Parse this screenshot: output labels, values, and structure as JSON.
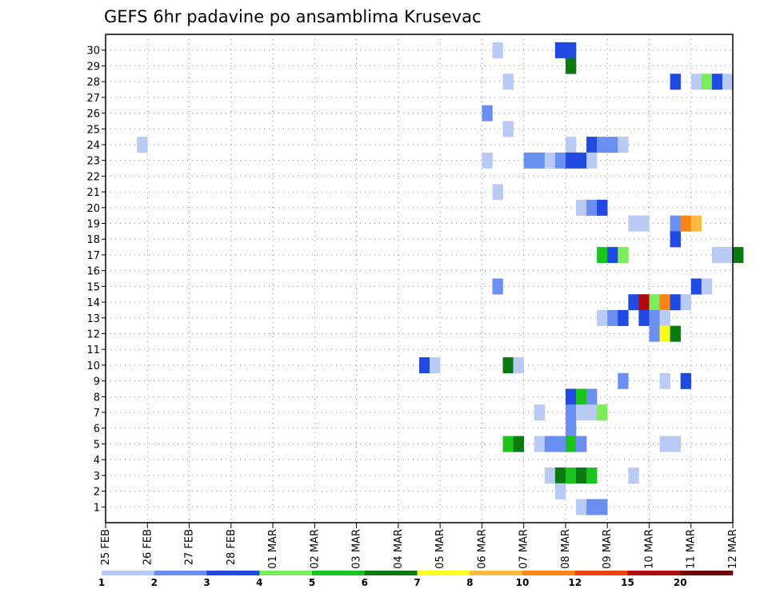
{
  "chart_data": {
    "type": "heatmap",
    "title": "GEFS 6hr padavine po ansamblima Krusevac",
    "xlabel": "",
    "ylabel": "",
    "x_tick_labels": [
      "25 FEB",
      "26 FEB",
      "27 FEB",
      "28 FEB",
      "01 MAR",
      "02 MAR",
      "03 MAR",
      "04 MAR",
      "05 MAR",
      "06 MAR",
      "07 MAR",
      "08 MAR",
      "09 MAR",
      "10 MAR",
      "11 MAR",
      "12 MAR"
    ],
    "x_range_days": [
      0,
      15
    ],
    "y_tick_labels": [
      "1",
      "2",
      "3",
      "4",
      "5",
      "6",
      "7",
      "8",
      "9",
      "10",
      "11",
      "12",
      "13",
      "14",
      "15",
      "16",
      "17",
      "18",
      "19",
      "20",
      "21",
      "22",
      "23",
      "24",
      "25",
      "26",
      "27",
      "28",
      "29",
      "30"
    ],
    "y_range": [
      0,
      30
    ],
    "grid": true,
    "legend": {
      "placement": "bottom",
      "colors": [
        "#b9cbf5",
        "#6b8ff0",
        "#1f49e0",
        "#7ced5a",
        "#19c31d",
        "#0b7a12",
        "#fbfd1c",
        "#fcbb3e",
        "#fb8415",
        "#f0400d",
        "#b2090e",
        "#6e060a"
      ],
      "labels": [
        "1",
        "2",
        "3",
        "4",
        "5",
        "6",
        "7",
        "8",
        "10",
        "12",
        "15",
        "20"
      ]
    },
    "cells": [
      {
        "member": 30,
        "step": 37,
        "bin": 1
      },
      {
        "member": 30,
        "step": 43,
        "bin": 3
      },
      {
        "member": 30,
        "step": 44,
        "bin": 3
      },
      {
        "member": 29,
        "step": 44,
        "bin": 6
      },
      {
        "member": 28,
        "step": 38,
        "bin": 1
      },
      {
        "member": 28,
        "step": 54,
        "bin": 3
      },
      {
        "member": 28,
        "step": 56,
        "bin": 1
      },
      {
        "member": 28,
        "step": 57,
        "bin": 4
      },
      {
        "member": 28,
        "step": 58,
        "bin": 3
      },
      {
        "member": 28,
        "step": 59,
        "bin": 1
      },
      {
        "member": 26,
        "step": 36,
        "bin": 2
      },
      {
        "member": 25,
        "step": 38,
        "bin": 1
      },
      {
        "member": 24,
        "step": 3,
        "bin": 1
      },
      {
        "member": 24,
        "step": 44,
        "bin": 1
      },
      {
        "member": 24,
        "step": 46,
        "bin": 3
      },
      {
        "member": 24,
        "step": 47,
        "bin": 2
      },
      {
        "member": 24,
        "step": 48,
        "bin": 2
      },
      {
        "member": 24,
        "step": 49,
        "bin": 1
      },
      {
        "member": 23,
        "step": 36,
        "bin": 1
      },
      {
        "member": 23,
        "step": 40,
        "bin": 2
      },
      {
        "member": 23,
        "step": 41,
        "bin": 2
      },
      {
        "member": 23,
        "step": 42,
        "bin": 1
      },
      {
        "member": 23,
        "step": 43,
        "bin": 2
      },
      {
        "member": 23,
        "step": 44,
        "bin": 3
      },
      {
        "member": 23,
        "step": 45,
        "bin": 3
      },
      {
        "member": 23,
        "step": 46,
        "bin": 1
      },
      {
        "member": 21,
        "step": 37,
        "bin": 1
      },
      {
        "member": 20,
        "step": 45,
        "bin": 1
      },
      {
        "member": 20,
        "step": 46,
        "bin": 2
      },
      {
        "member": 20,
        "step": 47,
        "bin": 3
      },
      {
        "member": 19,
        "step": 50,
        "bin": 1
      },
      {
        "member": 19,
        "step": 51,
        "bin": 1
      },
      {
        "member": 19,
        "step": 54,
        "bin": 2
      },
      {
        "member": 19,
        "step": 55,
        "bin": 9
      },
      {
        "member": 19,
        "step": 56,
        "bin": 8
      },
      {
        "member": 18,
        "step": 54,
        "bin": 3
      },
      {
        "member": 17,
        "step": 47,
        "bin": 5
      },
      {
        "member": 17,
        "step": 48,
        "bin": 3
      },
      {
        "member": 17,
        "step": 49,
        "bin": 4
      },
      {
        "member": 17,
        "step": 58,
        "bin": 1
      },
      {
        "member": 17,
        "step": 59,
        "bin": 1
      },
      {
        "member": 17,
        "step": 60,
        "bin": 6
      },
      {
        "member": 15,
        "step": 37,
        "bin": 2
      },
      {
        "member": 15,
        "step": 56,
        "bin": 3
      },
      {
        "member": 15,
        "step": 57,
        "bin": 1
      },
      {
        "member": 14,
        "step": 50,
        "bin": 3
      },
      {
        "member": 14,
        "step": 51,
        "bin": 11
      },
      {
        "member": 14,
        "step": 52,
        "bin": 4
      },
      {
        "member": 14,
        "step": 53,
        "bin": 9
      },
      {
        "member": 14,
        "step": 54,
        "bin": 3
      },
      {
        "member": 14,
        "step": 55,
        "bin": 1
      },
      {
        "member": 13,
        "step": 47,
        "bin": 1
      },
      {
        "member": 13,
        "step": 48,
        "bin": 2
      },
      {
        "member": 13,
        "step": 49,
        "bin": 3
      },
      {
        "member": 13,
        "step": 51,
        "bin": 3
      },
      {
        "member": 13,
        "step": 52,
        "bin": 2
      },
      {
        "member": 13,
        "step": 53,
        "bin": 1
      },
      {
        "member": 12,
        "step": 52,
        "bin": 2
      },
      {
        "member": 12,
        "step": 53,
        "bin": 7
      },
      {
        "member": 12,
        "step": 54,
        "bin": 6
      },
      {
        "member": 10,
        "step": 30,
        "bin": 3
      },
      {
        "member": 10,
        "step": 31,
        "bin": 1
      },
      {
        "member": 10,
        "step": 38,
        "bin": 6
      },
      {
        "member": 10,
        "step": 39,
        "bin": 1
      },
      {
        "member": 9,
        "step": 49,
        "bin": 2
      },
      {
        "member": 9,
        "step": 53,
        "bin": 1
      },
      {
        "member": 9,
        "step": 55,
        "bin": 3
      },
      {
        "member": 8,
        "step": 44,
        "bin": 3
      },
      {
        "member": 8,
        "step": 45,
        "bin": 5
      },
      {
        "member": 8,
        "step": 46,
        "bin": 2
      },
      {
        "member": 7,
        "step": 41,
        "bin": 1
      },
      {
        "member": 7,
        "step": 44,
        "bin": 2
      },
      {
        "member": 7,
        "step": 45,
        "bin": 1
      },
      {
        "member": 7,
        "step": 46,
        "bin": 1
      },
      {
        "member": 7,
        "step": 47,
        "bin": 4
      },
      {
        "member": 6,
        "step": 44,
        "bin": 2
      },
      {
        "member": 5,
        "step": 38,
        "bin": 5
      },
      {
        "member": 5,
        "step": 39,
        "bin": 6
      },
      {
        "member": 5,
        "step": 41,
        "bin": 1
      },
      {
        "member": 5,
        "step": 42,
        "bin": 2
      },
      {
        "member": 5,
        "step": 43,
        "bin": 2
      },
      {
        "member": 5,
        "step": 44,
        "bin": 5
      },
      {
        "member": 5,
        "step": 45,
        "bin": 2
      },
      {
        "member": 5,
        "step": 53,
        "bin": 1
      },
      {
        "member": 5,
        "step": 54,
        "bin": 1
      },
      {
        "member": 3,
        "step": 42,
        "bin": 1
      },
      {
        "member": 3,
        "step": 43,
        "bin": 6
      },
      {
        "member": 3,
        "step": 44,
        "bin": 5
      },
      {
        "member": 3,
        "step": 45,
        "bin": 6
      },
      {
        "member": 3,
        "step": 46,
        "bin": 5
      },
      {
        "member": 3,
        "step": 50,
        "bin": 1
      },
      {
        "member": 2,
        "step": 43,
        "bin": 1
      },
      {
        "member": 1,
        "step": 45,
        "bin": 1
      },
      {
        "member": 1,
        "step": 46,
        "bin": 2
      },
      {
        "member": 1,
        "step": 47,
        "bin": 2
      }
    ]
  }
}
